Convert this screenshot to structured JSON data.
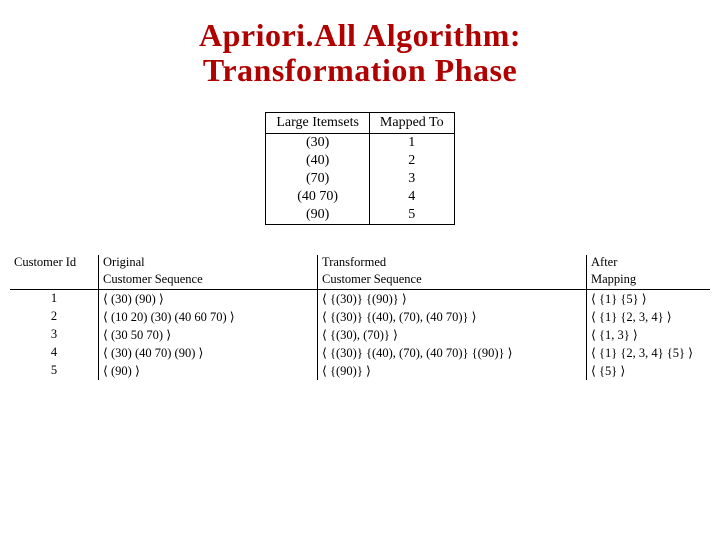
{
  "title_line1": "Apriori.All Algorithm:",
  "title_line2": "Transformation Phase",
  "mapping_table": {
    "headers": [
      "Large Itemsets",
      "Mapped To"
    ],
    "rows": [
      [
        "(30)",
        "1"
      ],
      [
        "(40)",
        "2"
      ],
      [
        "(70)",
        "3"
      ],
      [
        "(40 70)",
        "4"
      ],
      [
        "(90)",
        "5"
      ]
    ]
  },
  "seq_table": {
    "header_row1": [
      "Customer Id",
      "Original",
      "Transformed",
      "After"
    ],
    "header_row2": [
      "",
      "Customer Sequence",
      "Customer Sequence",
      "Mapping"
    ],
    "rows": [
      [
        "1",
        "⟨ (30) (90) ⟩",
        "⟨ {(30)} {(90)} ⟩",
        "⟨ {1} {5} ⟩"
      ],
      [
        "2",
        "⟨ (10 20) (30) (40 60 70) ⟩",
        "⟨ {(30)} {(40), (70), (40 70)} ⟩",
        "⟨ {1} {2, 3, 4} ⟩"
      ],
      [
        "3",
        "⟨ (30 50 70) ⟩",
        "⟨ {(30), (70)} ⟩",
        "⟨ {1, 3} ⟩"
      ],
      [
        "4",
        "⟨ (30) (40 70) (90) ⟩",
        "⟨ {(30)} {(40), (70), (40 70)} {(90)} ⟩",
        "⟨ {1} {2, 3, 4} {5} ⟩"
      ],
      [
        "5",
        "⟨ (90) ⟩",
        "⟨ {(90)} ⟩",
        "⟨ {5} ⟩"
      ]
    ]
  },
  "colors": {
    "title": "#b00000",
    "text": "#000000",
    "background": "#ffffff",
    "border": "#000000"
  },
  "fonts": {
    "title_size_pt": 32,
    "body_size_pt": 14,
    "seq_size_pt": 12.5,
    "family": "Times New Roman, serif"
  }
}
